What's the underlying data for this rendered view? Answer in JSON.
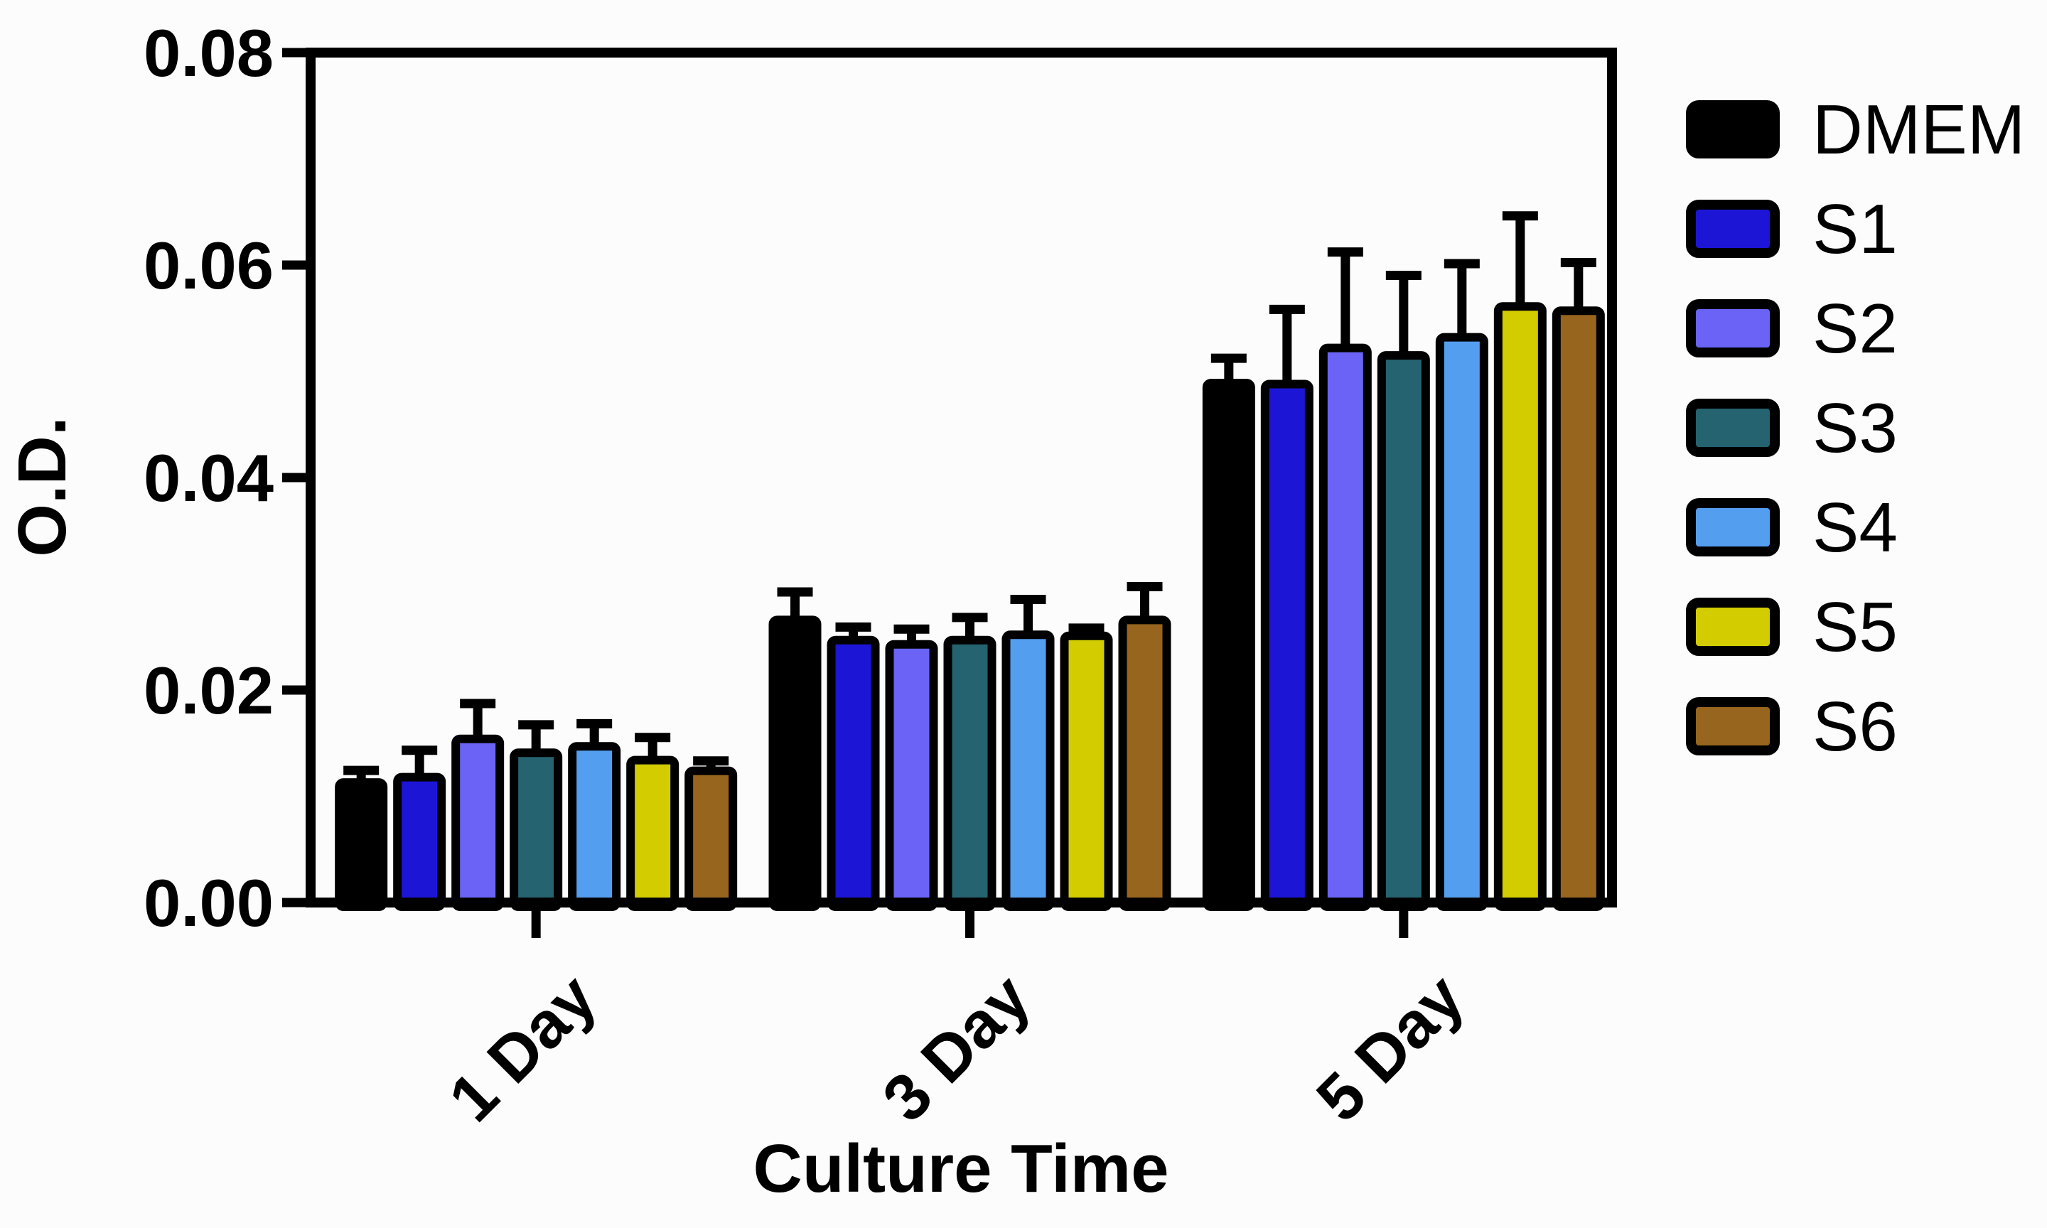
{
  "figure": {
    "background": "#fcfcfc",
    "frame_color": "#000000"
  },
  "chart_data": {
    "type": "bar",
    "title": "",
    "xlabel": "Culture Time",
    "ylabel": "O.D.",
    "categories": [
      "1 Day",
      "3 Day",
      "5 Day"
    ],
    "series": [
      {
        "name": "DMEM",
        "color": "#000000",
        "values": [
          0.0113,
          0.0266,
          0.0489
        ],
        "errors_plus": [
          0.0016,
          0.0031,
          0.0028
        ]
      },
      {
        "name": "S1",
        "color": "#1c15d6",
        "values": [
          0.0118,
          0.0247,
          0.0488
        ],
        "errors_plus": [
          0.003,
          0.0017,
          0.0075
        ]
      },
      {
        "name": "S2",
        "color": "#6a63f6",
        "values": [
          0.0154,
          0.0243,
          0.0522
        ],
        "errors_plus": [
          0.0038,
          0.0019,
          0.0095
        ]
      },
      {
        "name": "S3",
        "color": "#24636f",
        "values": [
          0.0141,
          0.0247,
          0.0515
        ],
        "errors_plus": [
          0.0031,
          0.0026,
          0.008
        ]
      },
      {
        "name": "S4",
        "color": "#549ef0",
        "values": [
          0.0147,
          0.0252,
          0.0532
        ],
        "errors_plus": [
          0.0026,
          0.0038,
          0.0074
        ]
      },
      {
        "name": "S5",
        "color": "#d2cc00",
        "values": [
          0.0134,
          0.0251,
          0.0561
        ],
        "errors_plus": [
          0.0026,
          0.0012,
          0.009
        ]
      },
      {
        "name": "S6",
        "color": "#97651d",
        "values": [
          0.0124,
          0.0266,
          0.0557
        ],
        "errors_plus": [
          0.0014,
          0.0036,
          0.005
        ]
      }
    ],
    "ylim": [
      0,
      0.08
    ],
    "ytick_step": 0.02,
    "ytick_labels": [
      "0.00",
      "0.02",
      "0.04",
      "0.06",
      "0.08"
    ],
    "grid": false,
    "legend_position": "right",
    "error_bars": "upper-only",
    "bar_outline_color": "#000000"
  }
}
